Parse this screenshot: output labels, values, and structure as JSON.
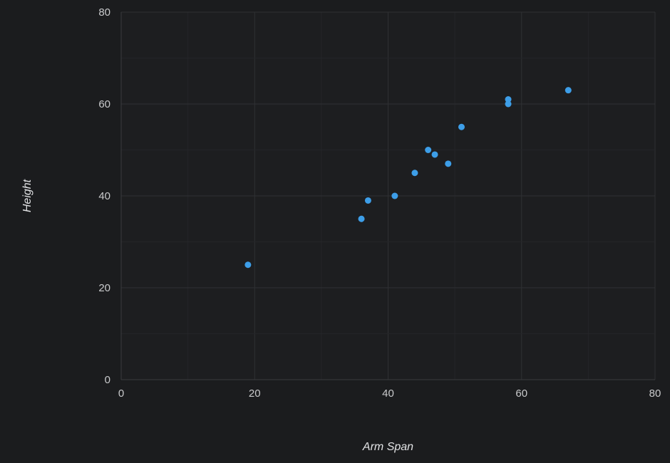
{
  "chart_data": {
    "type": "scatter",
    "xlabel": "Arm Span",
    "ylabel": "Height",
    "xlim": [
      0,
      80
    ],
    "ylim": [
      0,
      80
    ],
    "major_ticks": [
      0,
      20,
      40,
      60,
      80
    ],
    "minor_step": 10,
    "grid": true,
    "legend": "none",
    "series": [
      {
        "color": "#3d9ee8",
        "points": [
          {
            "x": 19,
            "y": 25
          },
          {
            "x": 36,
            "y": 35
          },
          {
            "x": 37,
            "y": 39
          },
          {
            "x": 41,
            "y": 40
          },
          {
            "x": 44,
            "y": 45
          },
          {
            "x": 46,
            "y": 50
          },
          {
            "x": 47,
            "y": 49
          },
          {
            "x": 49,
            "y": 47
          },
          {
            "x": 51,
            "y": 55
          },
          {
            "x": 58,
            "y": 60
          },
          {
            "x": 58,
            "y": 61
          },
          {
            "x": 67,
            "y": 63
          }
        ]
      }
    ]
  },
  "colors": {
    "background": "#1b1c1e",
    "plot_background": "#1d1e20",
    "grid_major": "#2f3033",
    "grid_minor": "#242528",
    "axis_line": "#3a3b3e",
    "tick_text": "#c9cacc",
    "title_text": "#e2e3e5"
  }
}
